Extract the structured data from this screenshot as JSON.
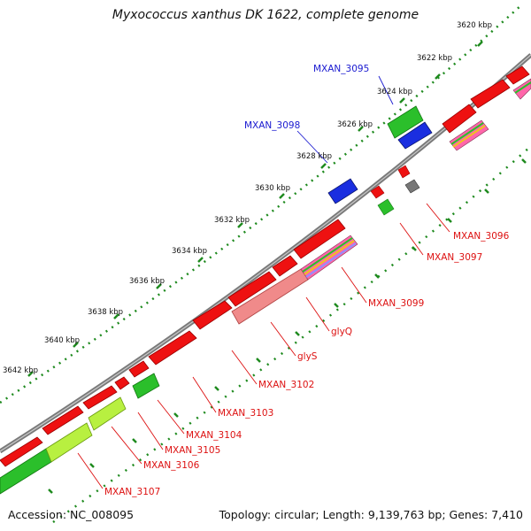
{
  "title": "Myxococcus xanthus DK 1622, complete genome",
  "footer": {
    "accession": "Accession: NC_008095",
    "summary": "Topology: circular; Length: 9,139,763 bp; Genes: 7,410"
  },
  "colors": {
    "backbone": "#7a7a7a",
    "tick": "#1e8a1e",
    "forward_gene": "#ee1111",
    "highlight_gene": "#1a2ee0",
    "rna_gene": "#2bbf2b",
    "label_red": "#dd1111",
    "label_blue": "#1a1ad0"
  },
  "axis_labels": [
    "3620 kbp",
    "3622 kbp",
    "3624 kbp",
    "3626 kbp",
    "3628 kbp",
    "3630 kbp",
    "3632 kbp",
    "3634 kbp",
    "3636 kbp",
    "3638 kbp",
    "3640 kbp",
    "3642 kbp"
  ],
  "gene_labels": [
    {
      "text": "MXAN_3095",
      "color": "blue"
    },
    {
      "text": "MXAN_3098",
      "color": "blue"
    },
    {
      "text": "MXAN_3096",
      "color": "red"
    },
    {
      "text": "MXAN_3097",
      "color": "red"
    },
    {
      "text": "MXAN_3099",
      "color": "red"
    },
    {
      "text": "glyQ",
      "color": "red"
    },
    {
      "text": "glyS",
      "color": "red"
    },
    {
      "text": "MXAN_3102",
      "color": "red"
    },
    {
      "text": "MXAN_3103",
      "color": "red"
    },
    {
      "text": "MXAN_3104",
      "color": "red"
    },
    {
      "text": "MXAN_3105",
      "color": "red"
    },
    {
      "text": "MXAN_3106",
      "color": "red"
    },
    {
      "text": "MXAN_3107",
      "color": "red"
    }
  ]
}
